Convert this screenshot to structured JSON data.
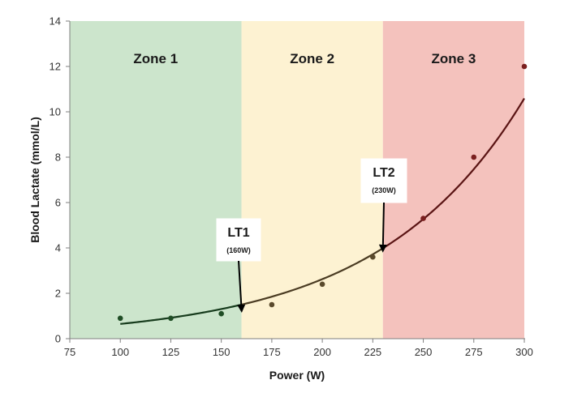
{
  "chart_data": {
    "type": "scatter",
    "title": "",
    "xlabel": "Power (W)",
    "ylabel": "Blood Lactate (mmol/L)",
    "xlim": [
      75,
      300
    ],
    "ylim": [
      0,
      14
    ],
    "xticks": [
      75,
      100,
      125,
      150,
      175,
      200,
      225,
      250,
      275,
      300
    ],
    "yticks": [
      0,
      2,
      4,
      6,
      8,
      10,
      12,
      14
    ],
    "grid": false,
    "legend": "none",
    "series": [
      {
        "x": [
          100,
          125,
          150,
          175,
          200,
          225,
          250,
          275,
          300
        ],
        "y": [
          0.9,
          0.9,
          1.1,
          1.5,
          2.4,
          3.6,
          5.3,
          8.0,
          12.0
        ],
        "fit": "exponential"
      }
    ],
    "zones": [
      {
        "label": "Zone 1",
        "from": 75,
        "to": 160,
        "color": "#cce5cc"
      },
      {
        "label": "Zone 2",
        "from": 160,
        "to": 230,
        "color": "#fdf2d2"
      },
      {
        "label": "Zone 3",
        "from": 230,
        "to": 300,
        "color": "#f4c2bd"
      }
    ],
    "annotations": [
      {
        "label": "LT1",
        "sublabel": "(160W)",
        "x": 160,
        "y": 1.25
      },
      {
        "label": "LT2",
        "sublabel": "(230W)",
        "x": 230,
        "y": 3.9
      }
    ],
    "curve_colors": {
      "zone1": "#163b1c",
      "zone2": "#4a3b22",
      "zone3": "#5a1414"
    },
    "point_colors": {
      "zone1": "#1f4d25",
      "zone2": "#5a4a2c",
      "zone3": "#7a1f1f"
    }
  }
}
